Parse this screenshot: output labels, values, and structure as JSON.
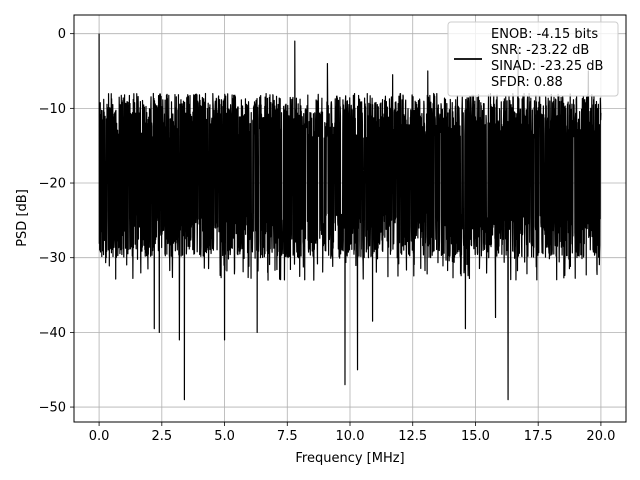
{
  "chart_data": {
    "type": "line",
    "title": "",
    "xlabel": "Frequency [MHz]",
    "ylabel": "PSD [dB]",
    "xlim": [
      -1.0,
      21.0
    ],
    "ylim": [
      -52.0,
      2.5
    ],
    "xticks": [
      0.0,
      2.5,
      5.0,
      7.5,
      10.0,
      12.5,
      15.0,
      17.5,
      20.0
    ],
    "xtick_labels": [
      "0.0",
      "2.5",
      "5.0",
      "7.5",
      "10.0",
      "12.5",
      "15.0",
      "17.5",
      "20.0"
    ],
    "yticks": [
      0,
      -10,
      -20,
      -30,
      -40,
      -50
    ],
    "ytick_labels": [
      "0",
      "−10",
      "−20",
      "−30",
      "−40",
      "−50"
    ],
    "grid": true,
    "legend_position": "top-right",
    "legend_lines": [
      "ENOB: -4.15 bits",
      "SNR: -23.22 dB",
      "SINAD: -23.25 dB",
      "SFDR: 0.88"
    ],
    "line_color": "#000000",
    "series": [
      {
        "name": "",
        "x_range": [
          0.0,
          20.0
        ],
        "approx_band_db": [
          -28,
          -8
        ],
        "peaks": [
          {
            "x": 0.0,
            "y": 0.0
          },
          {
            "x": 7.8,
            "y": -1.0
          },
          {
            "x": 9.1,
            "y": -4.0
          },
          {
            "x": 11.7,
            "y": -5.5
          },
          {
            "x": 13.1,
            "y": -5.0
          },
          {
            "x": 16.7,
            "y": -2.0
          },
          {
            "x": 19.5,
            "y": -5.0
          }
        ],
        "dips": [
          {
            "x": 3.4,
            "y": -49.0
          },
          {
            "x": 3.2,
            "y": -41.0
          },
          {
            "x": 2.2,
            "y": -39.5
          },
          {
            "x": 2.4,
            "y": -40.0
          },
          {
            "x": 5.0,
            "y": -41.0
          },
          {
            "x": 6.3,
            "y": -40.0
          },
          {
            "x": 9.8,
            "y": -47.0
          },
          {
            "x": 10.3,
            "y": -45.0
          },
          {
            "x": 10.9,
            "y": -38.5
          },
          {
            "x": 14.6,
            "y": -39.5
          },
          {
            "x": 15.8,
            "y": -38.0
          },
          {
            "x": 16.3,
            "y": -49.0
          }
        ]
      }
    ]
  }
}
